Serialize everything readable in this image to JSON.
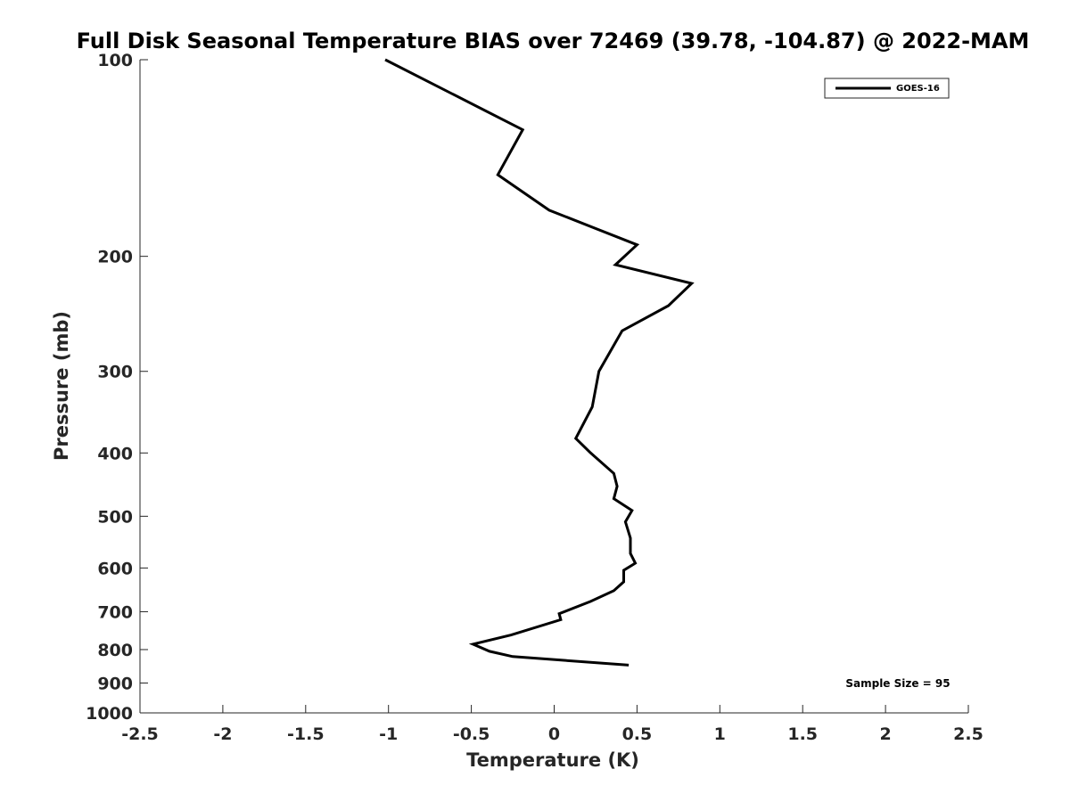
{
  "chart_data": {
    "type": "line",
    "title": "Full Disk Seasonal Temperature BIAS over 72469 (39.78, -104.87) @ 2022-MAM",
    "xlabel": "Temperature (K)",
    "ylabel": "Pressure (mb)",
    "xlim": [
      -2.5,
      2.5
    ],
    "ylim": [
      100,
      1000
    ],
    "y_scale": "log",
    "y_direction": "reverse",
    "x_ticks": [
      "-2.5",
      "-2",
      "-1.5",
      "-1",
      "-0.5",
      "0",
      "0.5",
      "1",
      "1.5",
      "2",
      "2.5"
    ],
    "x_tick_values": [
      -2.5,
      -2,
      -1.5,
      -1,
      -0.5,
      0,
      0.5,
      1,
      1.5,
      2,
      2.5
    ],
    "y_ticks": [
      "100",
      "200",
      "300",
      "400",
      "500",
      "600",
      "700",
      "800",
      "900",
      "1000"
    ],
    "y_tick_values": [
      100,
      200,
      300,
      400,
      500,
      600,
      700,
      800,
      900,
      1000
    ],
    "grid": false,
    "legend_position": "top-right",
    "series": [
      {
        "name": "GOES-16",
        "color": "#000000",
        "x": [
          -1.02,
          -0.19,
          -0.34,
          -0.03,
          0.5,
          0.37,
          0.83,
          0.69,
          0.41,
          0.27,
          0.23,
          0.13,
          0.22,
          0.36,
          0.38,
          0.36,
          0.47,
          0.43,
          0.46,
          0.46,
          0.49,
          0.42,
          0.42,
          0.36,
          0.22,
          0.03,
          0.04,
          -0.26,
          -0.49,
          -0.39,
          -0.25,
          0.45
        ],
        "y": [
          100,
          128,
          150,
          170,
          192,
          206,
          220,
          238,
          260,
          300,
          340,
          380,
          400,
          430,
          450,
          470,
          490,
          510,
          540,
          570,
          590,
          605,
          630,
          650,
          675,
          705,
          720,
          760,
          785,
          805,
          820,
          845
        ]
      }
    ],
    "annotations": [
      "Sample Size = 95"
    ]
  }
}
